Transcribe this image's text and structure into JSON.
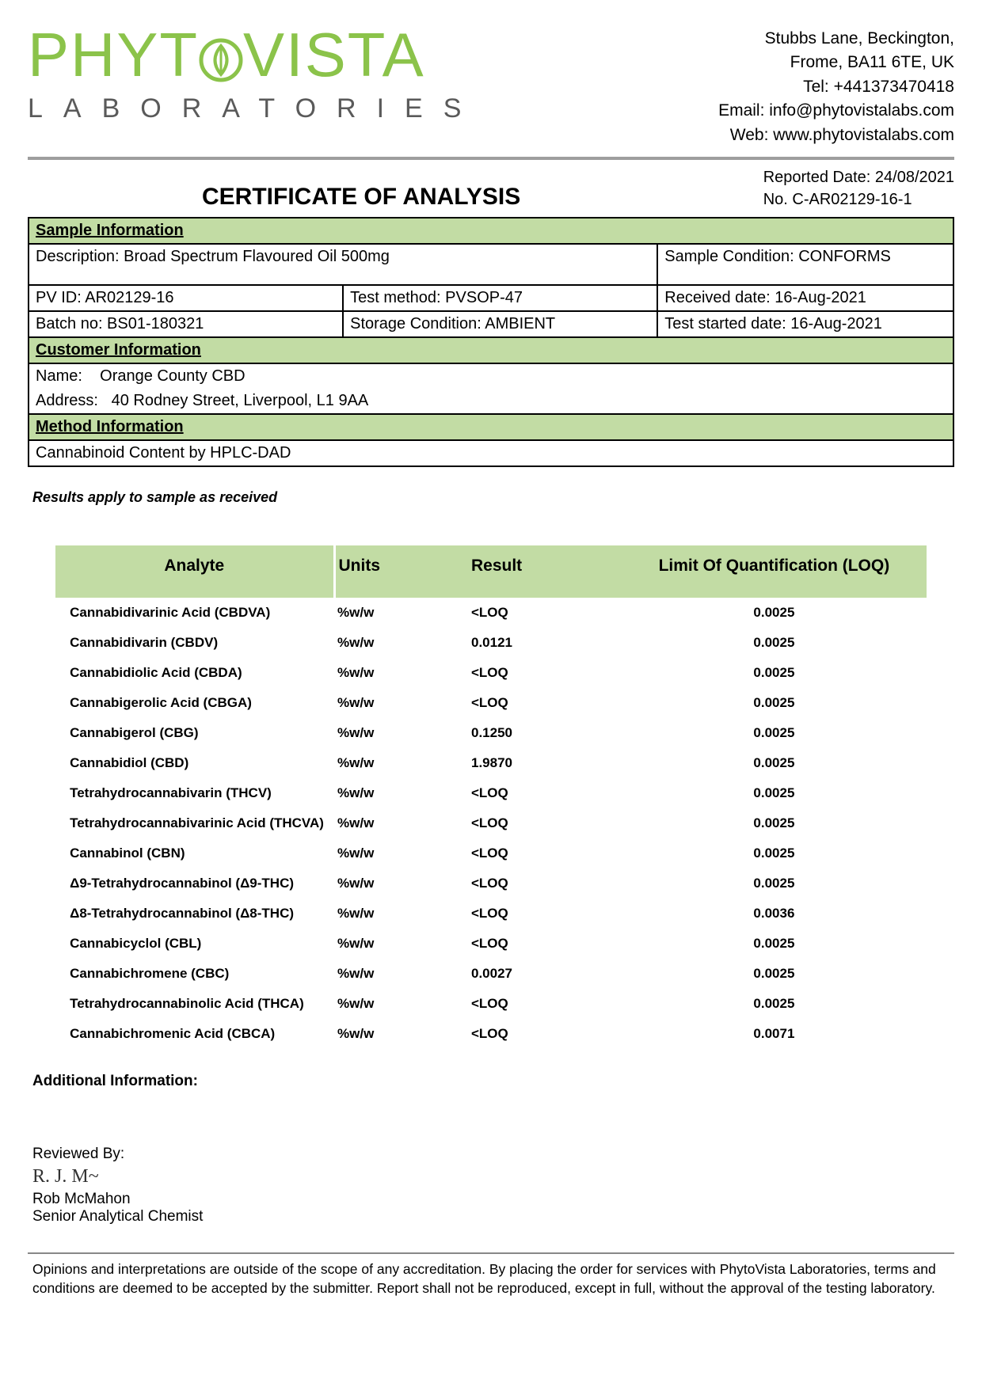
{
  "logo": {
    "main": "PHYTOVISTA",
    "sub": "LABORATORIES"
  },
  "contact": {
    "addr1": "Stubbs Lane, Beckington,",
    "addr2": "Frome, BA11 6TE, UK",
    "tel": "Tel: +441373470418",
    "email": "Email: info@phytovistalabs.com",
    "web": "Web: www.phytovistalabs.com"
  },
  "title": "CERTIFICATE OF ANALYSIS",
  "meta": {
    "reported": "Reported Date: 24/08/2021",
    "no": "No. C-AR02129-16-1"
  },
  "sample_header": "Sample Information",
  "sample": {
    "description": "Description: Broad Spectrum Flavoured Oil 500mg",
    "condition": "Sample Condition: CONFORMS",
    "pvid": "PV ID: AR02129-16",
    "method": "Test method: PVSOP-47",
    "received": "Received date: 16-Aug-2021",
    "batch": "Batch no: BS01-180321",
    "storage": "Storage Condition: AMBIENT",
    "started": "Test started date: 16-Aug-2021"
  },
  "customer_header": "Customer Information",
  "customer": {
    "name": "Name:    Orange County CBD",
    "address": "Address:   40 Rodney Street, Liverpool, L1 9AA"
  },
  "method_header": "Method Information",
  "method_text": "Cannabinoid Content by HPLC-DAD",
  "note": "Results apply to sample as received",
  "columns": {
    "analyte": "Analyte",
    "units": "Units",
    "result": "Result",
    "loq": "Limit Of Quantification (LOQ)"
  },
  "rows": [
    {
      "a": "Cannabidivarinic Acid (CBDVA)",
      "u": "%w/w",
      "r": "<LOQ",
      "l": "0.0025"
    },
    {
      "a": "Cannabidivarin (CBDV)",
      "u": "%w/w",
      "r": "0.0121",
      "l": "0.0025"
    },
    {
      "a": "Cannabidiolic Acid (CBDA)",
      "u": "%w/w",
      "r": "<LOQ",
      "l": "0.0025"
    },
    {
      "a": "Cannabigerolic Acid (CBGA)",
      "u": "%w/w",
      "r": "<LOQ",
      "l": "0.0025"
    },
    {
      "a": "Cannabigerol (CBG)",
      "u": "%w/w",
      "r": "0.1250",
      "l": "0.0025"
    },
    {
      "a": "Cannabidiol (CBD)",
      "u": "%w/w",
      "r": "1.9870",
      "l": "0.0025"
    },
    {
      "a": "Tetrahydrocannabivarin (THCV)",
      "u": "%w/w",
      "r": "<LOQ",
      "l": "0.0025"
    },
    {
      "a": "Tetrahydrocannabivarinic Acid (THCVA)",
      "u": "%w/w",
      "r": "<LOQ",
      "l": "0.0025"
    },
    {
      "a": "Cannabinol (CBN)",
      "u": "%w/w",
      "r": "<LOQ",
      "l": "0.0025"
    },
    {
      "a": "Δ9-Tetrahydrocannabinol (Δ9-THC)",
      "u": "%w/w",
      "r": "<LOQ",
      "l": "0.0025"
    },
    {
      "a": "Δ8-Tetrahydrocannabinol (Δ8-THC)",
      "u": "%w/w",
      "r": "<LOQ",
      "l": "0.0036"
    },
    {
      "a": "Cannabicyclol (CBL)",
      "u": "%w/w",
      "r": "<LOQ",
      "l": "0.0025"
    },
    {
      "a": "Cannabichromene (CBC)",
      "u": "%w/w",
      "r": "0.0027",
      "l": "0.0025"
    },
    {
      "a": "Tetrahydrocannabinolic Acid (THCA)",
      "u": "%w/w",
      "r": "<LOQ",
      "l": "0.0025"
    },
    {
      "a": "Cannabichromenic Acid (CBCA)",
      "u": "%w/w",
      "r": "<LOQ",
      "l": "0.0071"
    }
  ],
  "additional": "Additional Information:",
  "review": {
    "label": "Reviewed By:",
    "name": "Rob McMahon",
    "title": "Senior Analytical Chemist"
  },
  "footer": "Opinions and interpretations are outside of the scope of any accreditation. By placing the order for services with PhytoVista Laboratories, terms and conditions are deemed to be accepted by the submitter. Report shall not be reproduced, except in full, without the approval of the testing laboratory.",
  "colors": {
    "accent_green": "#8bc34a",
    "header_green": "#c2dca4",
    "grey": "#9e9e9e"
  }
}
